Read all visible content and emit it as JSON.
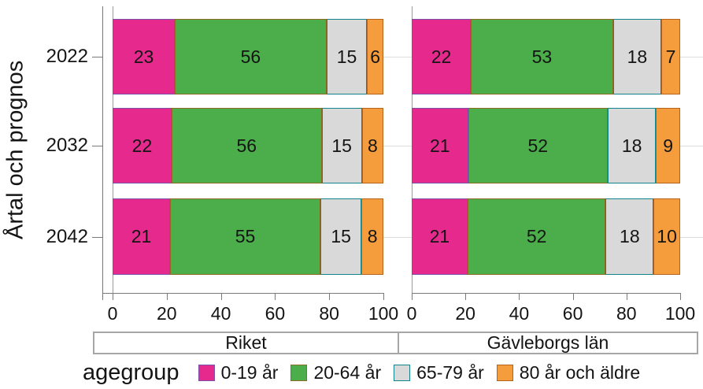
{
  "chart_data": {
    "type": "bar",
    "orientation": "horizontal-stacked",
    "title": "",
    "ylabel": "Årtal och prognos",
    "categories": [
      "2022",
      "2032",
      "2042"
    ],
    "x_ticks": [
      "0",
      "20",
      "40",
      "60",
      "80",
      "100"
    ],
    "xlim": [
      0,
      100
    ],
    "grid": false,
    "panels": [
      {
        "name": "Riket",
        "rows": [
          {
            "year": "2022",
            "values": [
              23,
              56,
              15,
              6
            ]
          },
          {
            "year": "2032",
            "values": [
              22,
              56,
              15,
              8
            ]
          },
          {
            "year": "2042",
            "values": [
              21,
              55,
              15,
              8
            ]
          }
        ]
      },
      {
        "name": "Gävleborgs län",
        "rows": [
          {
            "year": "2022",
            "values": [
              22,
              53,
              18,
              7
            ]
          },
          {
            "year": "2032",
            "values": [
              21,
              52,
              18,
              9
            ]
          },
          {
            "year": "2042",
            "values": [
              21,
              52,
              18,
              10
            ]
          }
        ]
      }
    ],
    "series": [
      {
        "name": "0-19 år",
        "fill": "#E6298C",
        "outline": "#7B52A8"
      },
      {
        "name": "20-64 år",
        "fill": "#4BAE4B",
        "outline": "#8A6D22"
      },
      {
        "name": "65-79 år",
        "fill": "#D9D9D9",
        "outline": "#15858D"
      },
      {
        "name": "80 år och äldre",
        "fill": "#F59C3D",
        "outline": "#B4641A"
      }
    ],
    "legend": {
      "title": "agegroup",
      "position": "bottom"
    }
  }
}
